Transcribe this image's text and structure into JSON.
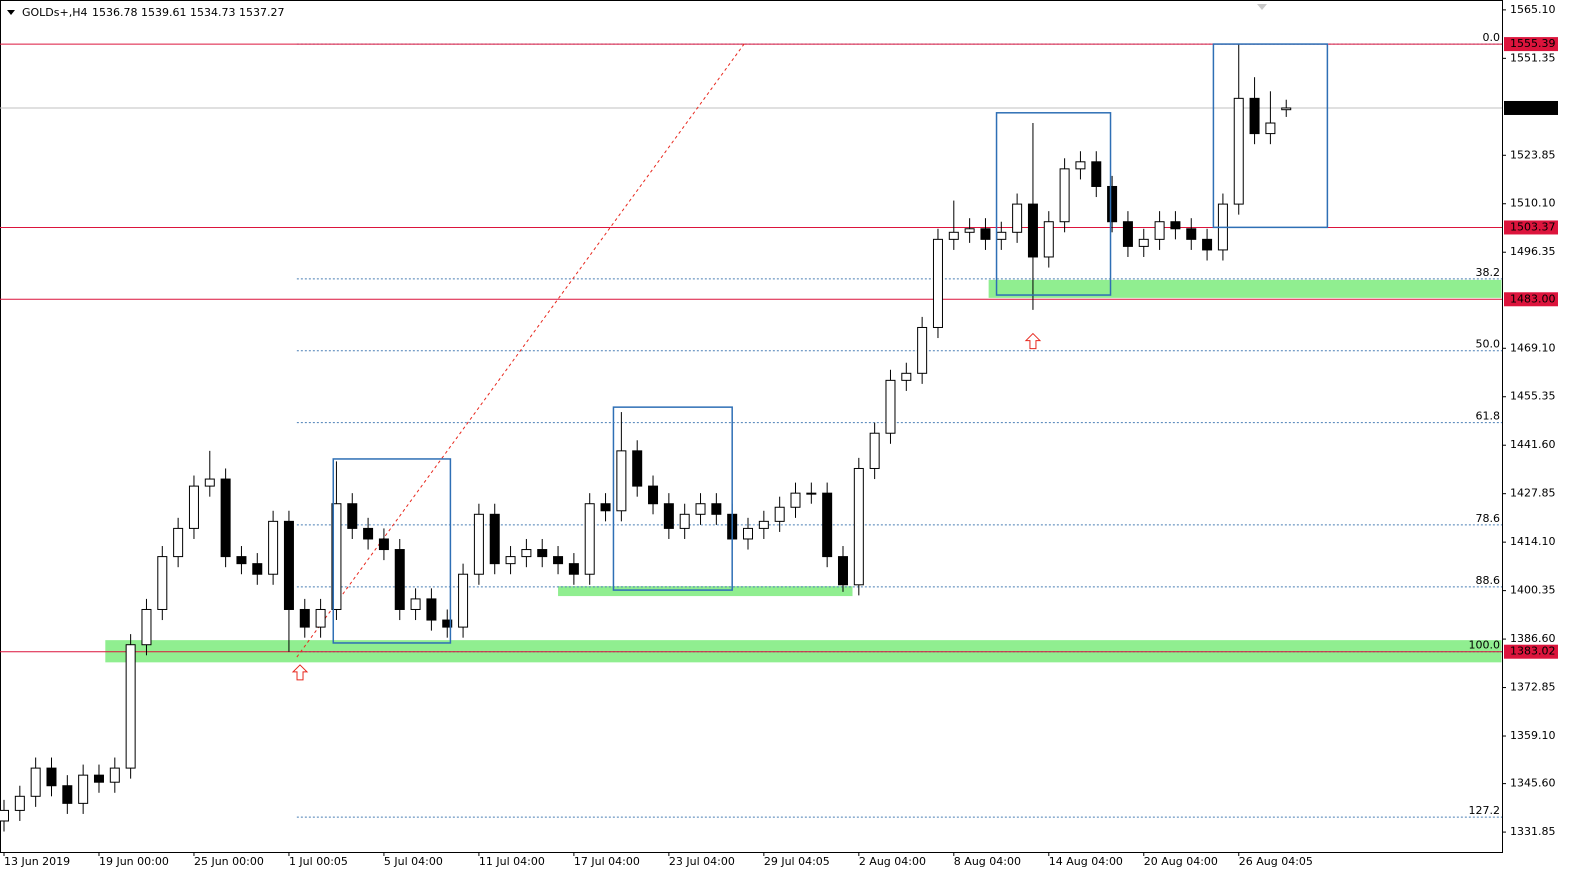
{
  "chart_data": {
    "type": "candlestick",
    "title": "GOLDs+,H4",
    "subtitle": "1536.78 1539.61 1534.73 1537.27",
    "categories": [
      "13 Jun 2019",
      null,
      null,
      null,
      null,
      null,
      "19 Jun 00:00",
      null,
      null,
      null,
      null,
      null,
      "25 Jun 00:00",
      null,
      null,
      null,
      null,
      null,
      "1 Jul 00:05",
      null,
      null,
      null,
      null,
      null,
      "5 Jul 04:00",
      null,
      null,
      null,
      null,
      null,
      "11 Jul 04:00",
      null,
      null,
      null,
      null,
      null,
      "17 Jul 04:00",
      null,
      null,
      null,
      null,
      null,
      "23 Jul 04:00",
      null,
      null,
      null,
      null,
      null,
      "29 Jul 04:05",
      null,
      null,
      null,
      null,
      null,
      "2 Aug 04:00",
      null,
      null,
      null,
      null,
      null,
      "8 Aug 04:00",
      null,
      null,
      null,
      null,
      null,
      "14 Aug 04:00",
      null,
      null,
      null,
      null,
      null,
      "20 Aug 04:00",
      null,
      null,
      null,
      null,
      null,
      "26 Aug 04:05",
      null,
      null,
      null
    ],
    "open": [
      1335,
      1338,
      1342,
      1350,
      1345,
      1340,
      1348,
      1346,
      1350,
      1385,
      1395,
      1410,
      1418,
      1430,
      1432,
      1410,
      1408,
      1405,
      1420,
      1395,
      1390,
      1395,
      1425,
      1418,
      1415,
      1412,
      1395,
      1398,
      1392,
      1390,
      1405,
      1422,
      1408,
      1410,
      1412,
      1410,
      1408,
      1405,
      1425,
      1423,
      1440,
      1430,
      1425,
      1418,
      1422,
      1425,
      1422,
      1415,
      1418,
      1420,
      1424,
      1428,
      1428,
      1410,
      1402,
      1435,
      1445,
      1460,
      1462,
      1475,
      1500,
      1502,
      1503,
      1500,
      1502,
      1510,
      1495,
      1505,
      1520,
      1522,
      1515,
      1505,
      1498,
      1500,
      1505,
      1503,
      1500,
      1497,
      1510,
      1540,
      1530,
      1536.78
    ],
    "high": [
      1341,
      1345,
      1353,
      1353,
      1348,
      1351,
      1351,
      1353,
      1388,
      1398,
      1413,
      1421,
      1433,
      1440,
      1435,
      1413,
      1411,
      1423,
      1423,
      1398,
      1398,
      1437,
      1428,
      1421,
      1418,
      1415,
      1401,
      1401,
      1395,
      1408,
      1425,
      1425,
      1413,
      1415,
      1415,
      1413,
      1411,
      1428,
      1428,
      1451,
      1443,
      1433,
      1428,
      1425,
      1428,
      1428,
      1425,
      1421,
      1423,
      1427,
      1431,
      1431,
      1431,
      1413,
      1438,
      1448,
      1463,
      1465,
      1478,
      1503,
      1511,
      1506,
      1506,
      1505,
      1513,
      1533,
      1508,
      1523,
      1525,
      1525,
      1518,
      1508,
      1503,
      1508,
      1508,
      1506,
      1503,
      1513,
      1555.39,
      1546,
      1542,
      1539.61
    ],
    "low": [
      1332,
      1335,
      1339,
      1342,
      1337,
      1337,
      1343,
      1343,
      1347,
      1382,
      1392,
      1407,
      1415,
      1427,
      1407,
      1405,
      1402,
      1402,
      1383,
      1387,
      1387,
      1392,
      1415,
      1412,
      1409,
      1392,
      1392,
      1389,
      1387,
      1387,
      1402,
      1405,
      1405,
      1407,
      1407,
      1405,
      1402,
      1402,
      1420,
      1420,
      1427,
      1422,
      1415,
      1415,
      1419,
      1419,
      1412,
      1412,
      1415,
      1417,
      1421,
      1425,
      1407,
      1400,
      1399,
      1432,
      1442,
      1457,
      1459,
      1472,
      1497,
      1499,
      1497,
      1497,
      1499,
      1480,
      1492,
      1502,
      1517,
      1512,
      1502,
      1495,
      1495,
      1497,
      1500,
      1497,
      1494,
      1494,
      1507,
      1527,
      1527,
      1534.73
    ],
    "close": [
      1338,
      1342,
      1350,
      1345,
      1340,
      1348,
      1346,
      1350,
      1385,
      1395,
      1410,
      1418,
      1430,
      1432,
      1410,
      1408,
      1405,
      1420,
      1395,
      1390,
      1395,
      1425,
      1418,
      1415,
      1412,
      1395,
      1398,
      1392,
      1390,
      1405,
      1422,
      1408,
      1410,
      1412,
      1410,
      1408,
      1405,
      1425,
      1423,
      1440,
      1430,
      1425,
      1418,
      1422,
      1425,
      1422,
      1415,
      1418,
      1420,
      1424,
      1428,
      1428,
      1410,
      1402,
      1435,
      1445,
      1460,
      1462,
      1475,
      1500,
      1502,
      1503,
      1500,
      1502,
      1510,
      1495,
      1505,
      1520,
      1522,
      1515,
      1505,
      1498,
      1500,
      1505,
      1503,
      1500,
      1497,
      1510,
      1540,
      1530,
      1533,
      1537.27
    ],
    "ylim": [
      1326.2,
      1567.9
    ],
    "yticks": [
      {
        "value": 1565.1,
        "label": "1565.10"
      },
      {
        "value": 1551.35,
        "label": "1551.35"
      },
      {
        "value": 1523.85,
        "label": "1523.85"
      },
      {
        "value": 1510.1,
        "label": "1510.10"
      },
      {
        "value": 1496.35,
        "label": "1496.35"
      },
      {
        "value": 1469.1,
        "label": "1469.10"
      },
      {
        "value": 1455.35,
        "label": "1455.35"
      },
      {
        "value": 1441.6,
        "label": "1441.60"
      },
      {
        "value": 1427.85,
        "label": "1427.85"
      },
      {
        "value": 1414.1,
        "label": "1414.10"
      },
      {
        "value": 1400.35,
        "label": "1400.35"
      },
      {
        "value": 1386.6,
        "label": "1386.60"
      },
      {
        "value": 1372.85,
        "label": "1372.85"
      },
      {
        "value": 1359.1,
        "label": "1359.10"
      },
      {
        "value": 1345.6,
        "label": "1345.60"
      },
      {
        "value": 1331.85,
        "label": "1331.85"
      }
    ],
    "price_lines": [
      {
        "price": 1555.39,
        "color": "#dc143c"
      },
      {
        "price": 1537.27,
        "color": "#c0c0c0",
        "tag_color": "#000000"
      },
      {
        "price": 1503.37,
        "color": "#dc143c"
      },
      {
        "price": {
          "value": 1483,
          "label": "1483.00"
        },
        "color": "#dc143c"
      },
      {
        "price": 1383.02,
        "color": "#dc143c"
      }
    ],
    "fib_start": 18.5,
    "fib_color": "#4a7fb5",
    "fib_levels": [
      {
        "level": {
          "value": 0,
          "label": "0.0"
        },
        "price": 1555.39
      },
      {
        "level": 38.2,
        "price": 1488.8
      },
      {
        "level": {
          "value": 50,
          "label": "50.0"
        },
        "price": 1468.4
      },
      {
        "level": 61.8,
        "price": 1448.0
      },
      {
        "level": 78.6,
        "price": 1419.0
      },
      {
        "level": 88.6,
        "price": 1401.4
      },
      {
        "level": {
          "value": 100,
          "label": "100.0"
        },
        "price": 1383.02
      },
      {
        "level": 127.2,
        "price": 1336.1
      }
    ],
    "trend_line": {
      "from": [
        18.5,
        1381.5
      ],
      "to": [
        46.8,
        1555.7
      ],
      "color": "#e8281e"
    },
    "zones": [
      {
        "x0": 6.4,
        "x1": 94.6,
        "low": 1380.0,
        "high": 1386.3
      },
      {
        "x0": 35.0,
        "x1": 53.6,
        "low": 1398.8,
        "high": 1401.6
      },
      {
        "x0": 62.2,
        "x1": 94.6,
        "low": 1483.4,
        "high": 1488.5
      }
    ],
    "zone_color": "#90ee90",
    "boxes": [
      {
        "x0": 20.8,
        "x1": 28.2,
        "low": 1385.5,
        "high": 1437.7
      },
      {
        "x0": 38.5,
        "x1": 46.0,
        "low": 1400.5,
        "high": 1452.4
      },
      {
        "x0": 62.7,
        "x1": 69.9,
        "low": 1484.2,
        "high": 1535.9
      },
      {
        "x0": 76.4,
        "x1": 83.6,
        "low": 1503.4,
        "high": 1555.4
      }
    ],
    "box_color": "#2e6fb5",
    "arrows": [
      {
        "index": 18.7,
        "price": 1377
      },
      {
        "index": 65.0,
        "price": 1471
      }
    ],
    "arrow_color": "#e8281e",
    "candle_color": "#000000"
  }
}
